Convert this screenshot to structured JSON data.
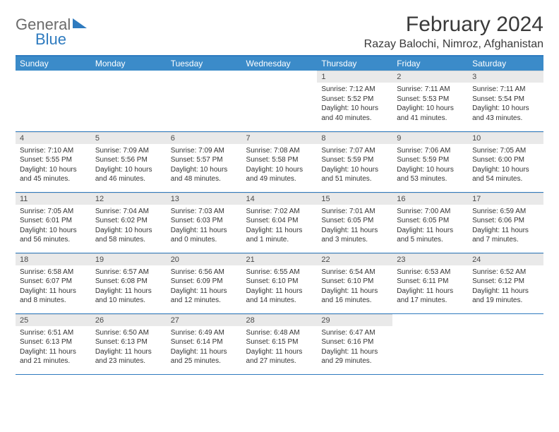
{
  "logo": {
    "line1": "General",
    "line2": "Blue"
  },
  "title": "February 2024",
  "location": "Razay Balochi, Nimroz, Afghanistan",
  "colors": {
    "accent": "#3b8bc9",
    "hr": "#2f7bbf",
    "daybar": "#e9e9e9",
    "text": "#333333",
    "logo_gray": "#6b6b6b",
    "logo_blue": "#2f7bbf"
  },
  "day_headers": [
    "Sunday",
    "Monday",
    "Tuesday",
    "Wednesday",
    "Thursday",
    "Friday",
    "Saturday"
  ],
  "weeks": [
    [
      null,
      null,
      null,
      null,
      {
        "n": "1",
        "sunrise": "7:12 AM",
        "sunset": "5:52 PM",
        "daylight": "10 hours and 40 minutes."
      },
      {
        "n": "2",
        "sunrise": "7:11 AM",
        "sunset": "5:53 PM",
        "daylight": "10 hours and 41 minutes."
      },
      {
        "n": "3",
        "sunrise": "7:11 AM",
        "sunset": "5:54 PM",
        "daylight": "10 hours and 43 minutes."
      }
    ],
    [
      {
        "n": "4",
        "sunrise": "7:10 AM",
        "sunset": "5:55 PM",
        "daylight": "10 hours and 45 minutes."
      },
      {
        "n": "5",
        "sunrise": "7:09 AM",
        "sunset": "5:56 PM",
        "daylight": "10 hours and 46 minutes."
      },
      {
        "n": "6",
        "sunrise": "7:09 AM",
        "sunset": "5:57 PM",
        "daylight": "10 hours and 48 minutes."
      },
      {
        "n": "7",
        "sunrise": "7:08 AM",
        "sunset": "5:58 PM",
        "daylight": "10 hours and 49 minutes."
      },
      {
        "n": "8",
        "sunrise": "7:07 AM",
        "sunset": "5:59 PM",
        "daylight": "10 hours and 51 minutes."
      },
      {
        "n": "9",
        "sunrise": "7:06 AM",
        "sunset": "5:59 PM",
        "daylight": "10 hours and 53 minutes."
      },
      {
        "n": "10",
        "sunrise": "7:05 AM",
        "sunset": "6:00 PM",
        "daylight": "10 hours and 54 minutes."
      }
    ],
    [
      {
        "n": "11",
        "sunrise": "7:05 AM",
        "sunset": "6:01 PM",
        "daylight": "10 hours and 56 minutes."
      },
      {
        "n": "12",
        "sunrise": "7:04 AM",
        "sunset": "6:02 PM",
        "daylight": "10 hours and 58 minutes."
      },
      {
        "n": "13",
        "sunrise": "7:03 AM",
        "sunset": "6:03 PM",
        "daylight": "11 hours and 0 minutes."
      },
      {
        "n": "14",
        "sunrise": "7:02 AM",
        "sunset": "6:04 PM",
        "daylight": "11 hours and 1 minute."
      },
      {
        "n": "15",
        "sunrise": "7:01 AM",
        "sunset": "6:05 PM",
        "daylight": "11 hours and 3 minutes."
      },
      {
        "n": "16",
        "sunrise": "7:00 AM",
        "sunset": "6:05 PM",
        "daylight": "11 hours and 5 minutes."
      },
      {
        "n": "17",
        "sunrise": "6:59 AM",
        "sunset": "6:06 PM",
        "daylight": "11 hours and 7 minutes."
      }
    ],
    [
      {
        "n": "18",
        "sunrise": "6:58 AM",
        "sunset": "6:07 PM",
        "daylight": "11 hours and 8 minutes."
      },
      {
        "n": "19",
        "sunrise": "6:57 AM",
        "sunset": "6:08 PM",
        "daylight": "11 hours and 10 minutes."
      },
      {
        "n": "20",
        "sunrise": "6:56 AM",
        "sunset": "6:09 PM",
        "daylight": "11 hours and 12 minutes."
      },
      {
        "n": "21",
        "sunrise": "6:55 AM",
        "sunset": "6:10 PM",
        "daylight": "11 hours and 14 minutes."
      },
      {
        "n": "22",
        "sunrise": "6:54 AM",
        "sunset": "6:10 PM",
        "daylight": "11 hours and 16 minutes."
      },
      {
        "n": "23",
        "sunrise": "6:53 AM",
        "sunset": "6:11 PM",
        "daylight": "11 hours and 17 minutes."
      },
      {
        "n": "24",
        "sunrise": "6:52 AM",
        "sunset": "6:12 PM",
        "daylight": "11 hours and 19 minutes."
      }
    ],
    [
      {
        "n": "25",
        "sunrise": "6:51 AM",
        "sunset": "6:13 PM",
        "daylight": "11 hours and 21 minutes."
      },
      {
        "n": "26",
        "sunrise": "6:50 AM",
        "sunset": "6:13 PM",
        "daylight": "11 hours and 23 minutes."
      },
      {
        "n": "27",
        "sunrise": "6:49 AM",
        "sunset": "6:14 PM",
        "daylight": "11 hours and 25 minutes."
      },
      {
        "n": "28",
        "sunrise": "6:48 AM",
        "sunset": "6:15 PM",
        "daylight": "11 hours and 27 minutes."
      },
      {
        "n": "29",
        "sunrise": "6:47 AM",
        "sunset": "6:16 PM",
        "daylight": "11 hours and 29 minutes."
      },
      null,
      null
    ]
  ],
  "labels": {
    "sunrise": "Sunrise: ",
    "sunset": "Sunset: ",
    "daylight": "Daylight: "
  }
}
